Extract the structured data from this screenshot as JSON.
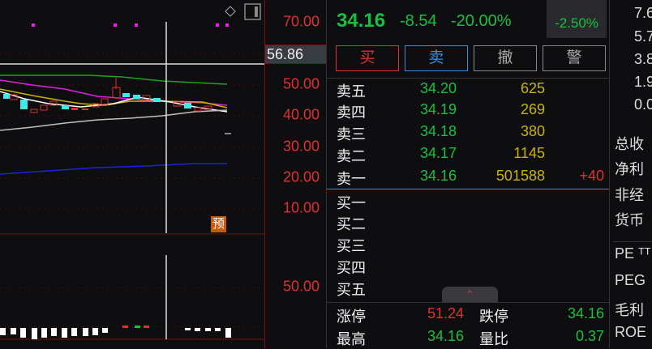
{
  "chart": {
    "price_axis": [
      "70.00",
      "50.00",
      "40.00",
      "30.00",
      "20.00",
      "10.00"
    ],
    "crosshair_price": "56.86",
    "volume_axis": [
      "50.00"
    ],
    "forecast_badge": "预",
    "colors": {
      "up": "#e03030",
      "down": "#40e8e8",
      "ma5": "#ffffff",
      "ma10": "#c8b400",
      "ma20": "#e020e0",
      "ma60": "#20a020",
      "ma120": "#c0c0c0",
      "ma250": "#2020e0"
    }
  },
  "quote": {
    "price": "34.16",
    "change": "-8.54",
    "change_pct": "-20.00%",
    "side_pct": "-2.50%"
  },
  "buttons": {
    "buy": "买",
    "sell": "卖",
    "cancel": "撤",
    "alert": "警"
  },
  "sell_orders": [
    {
      "label": "卖五",
      "price": "34.20",
      "volume": "625",
      "delta": ""
    },
    {
      "label": "卖四",
      "price": "34.19",
      "volume": "269",
      "delta": ""
    },
    {
      "label": "卖三",
      "price": "34.18",
      "volume": "380",
      "delta": ""
    },
    {
      "label": "卖二",
      "price": "34.17",
      "volume": "1145",
      "delta": ""
    },
    {
      "label": "卖一",
      "price": "34.16",
      "volume": "501588",
      "delta": "+40"
    }
  ],
  "buy_orders": [
    {
      "label": "买一"
    },
    {
      "label": "买二"
    },
    {
      "label": "买三"
    },
    {
      "label": "买四"
    },
    {
      "label": "买五"
    }
  ],
  "stats": [
    {
      "label": "涨停",
      "value": "51.24",
      "label2": "跌停",
      "value2": "34.16"
    },
    {
      "label": "最高",
      "value": "34.16",
      "label2": "量比",
      "value2": "0.37"
    }
  ],
  "side": {
    "numbers": [
      "7.6",
      "5.7",
      "3.8",
      "1.9",
      "0.0"
    ],
    "fin_labels": [
      "总收",
      "净利",
      "非经",
      "货币"
    ],
    "ratio_labels": [
      "PE ᵀᵀ",
      "PEG",
      "毛利",
      "ROE"
    ]
  }
}
